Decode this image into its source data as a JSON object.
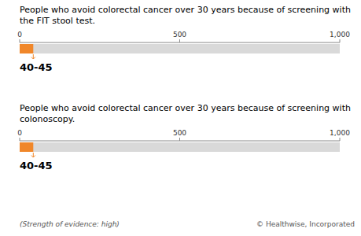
{
  "chart_data": [
    {
      "type": "bar",
      "orientation": "horizontal",
      "title": "People who avoid colorectal cancer over 30 years because of screening with the FIT stool test.",
      "categories": [
        null
      ],
      "series": [
        {
          "color": "#d9d9d9",
          "values": [
            1000
          ]
        },
        {
          "color": "#f0872a",
          "values": [
            42.5
          ]
        }
      ],
      "xlim": [
        0,
        1000
      ],
      "xticks": [
        0,
        500,
        {
          "value": 1000,
          "label": "1,000"
        }
      ],
      "annotations": [
        "40-45"
      ]
    },
    {
      "type": "bar",
      "orientation": "horizontal",
      "title": "People who avoid colorectal cancer over 30 years because of screening with colonoscopy.",
      "categories": [
        null
      ],
      "series": [
        {
          "color": "#d9d9d9",
          "values": [
            1000
          ]
        },
        {
          "color": "#f0872a",
          "values": [
            42.5
          ]
        }
      ],
      "xlim": [
        0,
        1000
      ],
      "xticks": [
        0,
        500,
        {
          "value": 1000,
          "label": "1,000"
        }
      ],
      "annotations": [
        "40-45",
        "(Strength of evidence: high)",
        "© Healthwise, Incorporated"
      ]
    }
  ]
}
